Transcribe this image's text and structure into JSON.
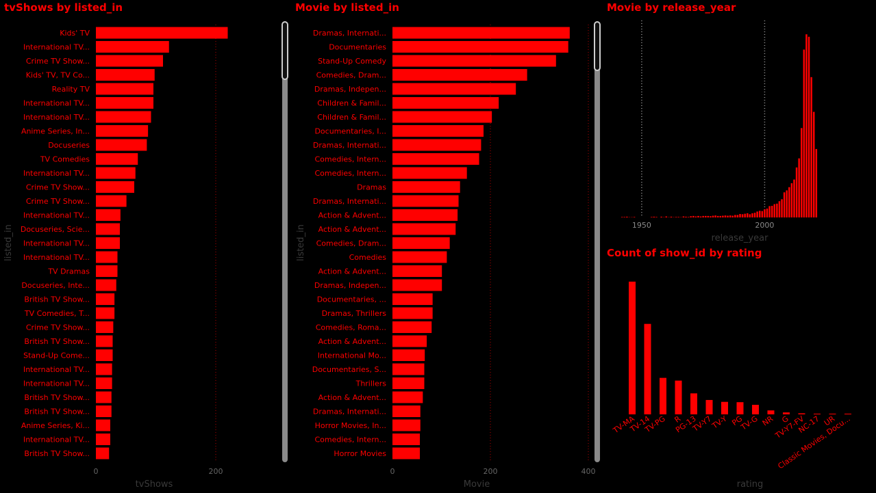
{
  "colors": {
    "bar": "#ff0000",
    "axis_title": "#3a3a3a",
    "tick": "#666666",
    "grid": "#7a0000",
    "background": "#000000"
  },
  "panels": {
    "tv": {
      "title": "tvShows by listed_in"
    },
    "movie": {
      "title": "Movie by listed_in"
    },
    "year": {
      "title": "Movie by release_year"
    },
    "rating": {
      "title": "Count of show_id by rating"
    }
  },
  "chart_data": [
    {
      "type": "bar",
      "orientation": "horizontal",
      "title": "tvShows by listed_in",
      "xlabel": "tvShows",
      "ylabel": "listed_in",
      "xlim": [
        0,
        240
      ],
      "xticks": [
        0,
        200
      ],
      "grid": "dotted vertical",
      "categories": [
        "Kids' TV",
        "International TV...",
        "Crime TV Show...",
        "Kids' TV, TV Co...",
        "Reality TV",
        "International TV...",
        "International TV...",
        "Anime Series, In...",
        "Docuseries",
        "TV Comedies",
        "International TV...",
        "Crime TV Show...",
        "Crime TV Show...",
        "International TV...",
        "Docuseries, Scie...",
        "International TV...",
        "International TV...",
        "TV Dramas",
        "Docuseries, Inte...",
        "British TV Show...",
        "TV Comedies, T...",
        "Crime TV Show...",
        "British TV Show...",
        "Stand-Up Come...",
        "International TV...",
        "International TV...",
        "British TV Show...",
        "British TV Show...",
        "Anime Series, Ki...",
        "International TV...",
        "British TV Show..."
      ],
      "values": [
        220,
        122,
        112,
        98,
        96,
        96,
        92,
        87,
        85,
        70,
        66,
        64,
        51,
        41,
        40,
        40,
        36,
        36,
        34,
        31,
        31,
        29,
        28,
        28,
        27,
        27,
        26,
        26,
        24,
        24,
        22
      ]
    },
    {
      "type": "bar",
      "orientation": "horizontal",
      "title": "Movie by listed_in",
      "xlabel": "Movie",
      "ylabel": "listed_in",
      "xlim": [
        0,
        400
      ],
      "xticks": [
        0,
        200,
        400
      ],
      "grid": "dotted vertical",
      "categories": [
        "Dramas, Internati...",
        "Documentaries",
        "Stand-Up Comedy",
        "Comedies, Dram...",
        "Dramas, Indepen...",
        "Children & Famil...",
        "Children & Famil...",
        "Documentaries, I...",
        "Dramas, Internati...",
        "Comedies, Intern...",
        "Comedies, Intern...",
        "Dramas",
        "Dramas, Internati...",
        "Action & Advent...",
        "Action & Advent...",
        "Comedies, Dram...",
        "Comedies",
        "Action & Advent...",
        "Dramas, Indepen...",
        "Documentaries, ...",
        "Dramas, Thrillers",
        "Comedies, Roma...",
        "Action & Advent...",
        "International Mo...",
        "Documentaries, S...",
        "Thrillers",
        "Action & Advent...",
        "Dramas, Internati...",
        "Horror Movies, In...",
        "Comedies, Intern...",
        "Horror Movies"
      ],
      "values": [
        362,
        359,
        334,
        275,
        252,
        217,
        203,
        186,
        181,
        177,
        152,
        138,
        135,
        133,
        129,
        117,
        111,
        101,
        101,
        82,
        82,
        80,
        70,
        66,
        65,
        65,
        62,
        57,
        57,
        56,
        56
      ]
    },
    {
      "type": "bar",
      "title": "Movie by release_year",
      "xlabel": "release_year",
      "ylabel": "",
      "xlim": [
        1940,
        2023
      ],
      "xticks": [
        1950,
        2000
      ],
      "ylim": [
        0,
        800
      ],
      "grid": "dotted vertical",
      "x": [
        1942,
        1943,
        1944,
        1945,
        1946,
        1947,
        1954,
        1955,
        1956,
        1958,
        1959,
        1960,
        1961,
        1962,
        1963,
        1964,
        1965,
        1966,
        1967,
        1968,
        1969,
        1970,
        1971,
        1972,
        1973,
        1974,
        1975,
        1976,
        1977,
        1978,
        1979,
        1980,
        1981,
        1982,
        1983,
        1984,
        1985,
        1986,
        1987,
        1988,
        1989,
        1990,
        1991,
        1992,
        1993,
        1994,
        1995,
        1996,
        1997,
        1998,
        1999,
        2000,
        2001,
        2002,
        2003,
        2004,
        2005,
        2006,
        2007,
        2008,
        2009,
        2010,
        2011,
        2012,
        2013,
        2014,
        2015,
        2016,
        2017,
        2018,
        2019,
        2020,
        2021
      ],
      "values": [
        2,
        2,
        3,
        1,
        1,
        2,
        2,
        3,
        2,
        3,
        1,
        4,
        1,
        3,
        1,
        2,
        2,
        1,
        4,
        3,
        2,
        5,
        6,
        4,
        6,
        4,
        6,
        6,
        6,
        5,
        7,
        8,
        6,
        6,
        7,
        8,
        7,
        8,
        7,
        10,
        10,
        14,
        13,
        15,
        17,
        13,
        17,
        19,
        24,
        27,
        26,
        33,
        36,
        46,
        47,
        54,
        56,
        66,
        74,
        102,
        110,
        123,
        139,
        154,
        203,
        240,
        363,
        682,
        744,
        734,
        570,
        429,
        278
      ]
    },
    {
      "type": "bar",
      "title": "Count of show_id by rating",
      "xlabel": "rating",
      "ylabel": "",
      "ylim": [
        0,
        2300
      ],
      "categories": [
        "TV-MA",
        "TV-14",
        "TV-PG",
        "R",
        "PG-13",
        "TV-Y7",
        "TV-Y",
        "PG",
        "TV-G",
        "NR",
        "G",
        "TV-Y7-FV",
        "NC-17",
        "UR",
        "Classic Movies, Docu..."
      ],
      "values": [
        2048,
        1396,
        563,
        521,
        324,
        222,
        193,
        188,
        147,
        61,
        30,
        16,
        3,
        3,
        1
      ]
    }
  ]
}
